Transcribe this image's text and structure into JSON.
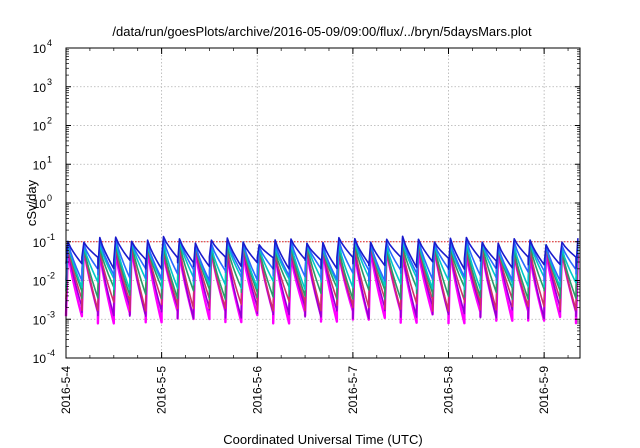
{
  "chart_data": {
    "type": "line",
    "title": "/data/run/goesPlots/archive/2016-05-09/09:00/flux/../bryn/5daysMars.plot",
    "xlabel": "Coordinated Universal Time (UTC)",
    "ylabel": "cSv/day",
    "y_scale": "log",
    "ylim": [
      0.0001,
      10000
    ],
    "y_ticks": [
      {
        "base": "10",
        "exp": "-4",
        "value": 0.0001
      },
      {
        "base": "10",
        "exp": "-3",
        "value": 0.001
      },
      {
        "base": "10",
        "exp": "-2",
        "value": 0.01
      },
      {
        "base": "10",
        "exp": "-1",
        "value": 0.1
      },
      {
        "base": "10",
        "exp": "0",
        "value": 1
      },
      {
        "base": "10",
        "exp": "1",
        "value": 10
      },
      {
        "base": "10",
        "exp": "2",
        "value": 100
      },
      {
        "base": "10",
        "exp": "3",
        "value": 1000
      },
      {
        "base": "10",
        "exp": "4",
        "value": 10000
      }
    ],
    "xlim": [
      "2016-05-04T00:00",
      "2016-05-09T09:00"
    ],
    "x_tick_labels": [
      "2016-5-4",
      "2016-5-5",
      "2016-5-6",
      "2016-5-7",
      "2016-5-8",
      "2016-5-9"
    ],
    "grid": true,
    "reference_line": {
      "value": 0.1,
      "color": "#e41a1c",
      "style": "dotted"
    },
    "series_colors": [
      "#ff00ff",
      "#9400d3",
      "#d0306a",
      "#2a9a6a",
      "#00c8c8",
      "#2a6aff",
      "#1a1acc"
    ],
    "pattern": {
      "description": "sawtooth spikes roughly every 4 hours, sharp rise then decay",
      "period_hours": 4,
      "series_peak_values": [
        0.06,
        0.065,
        0.07,
        0.08,
        0.09,
        0.1,
        0.11
      ],
      "series_trough_values": [
        0.0012,
        0.0016,
        0.0025,
        0.005,
        0.009,
        0.015,
        0.03
      ]
    }
  }
}
